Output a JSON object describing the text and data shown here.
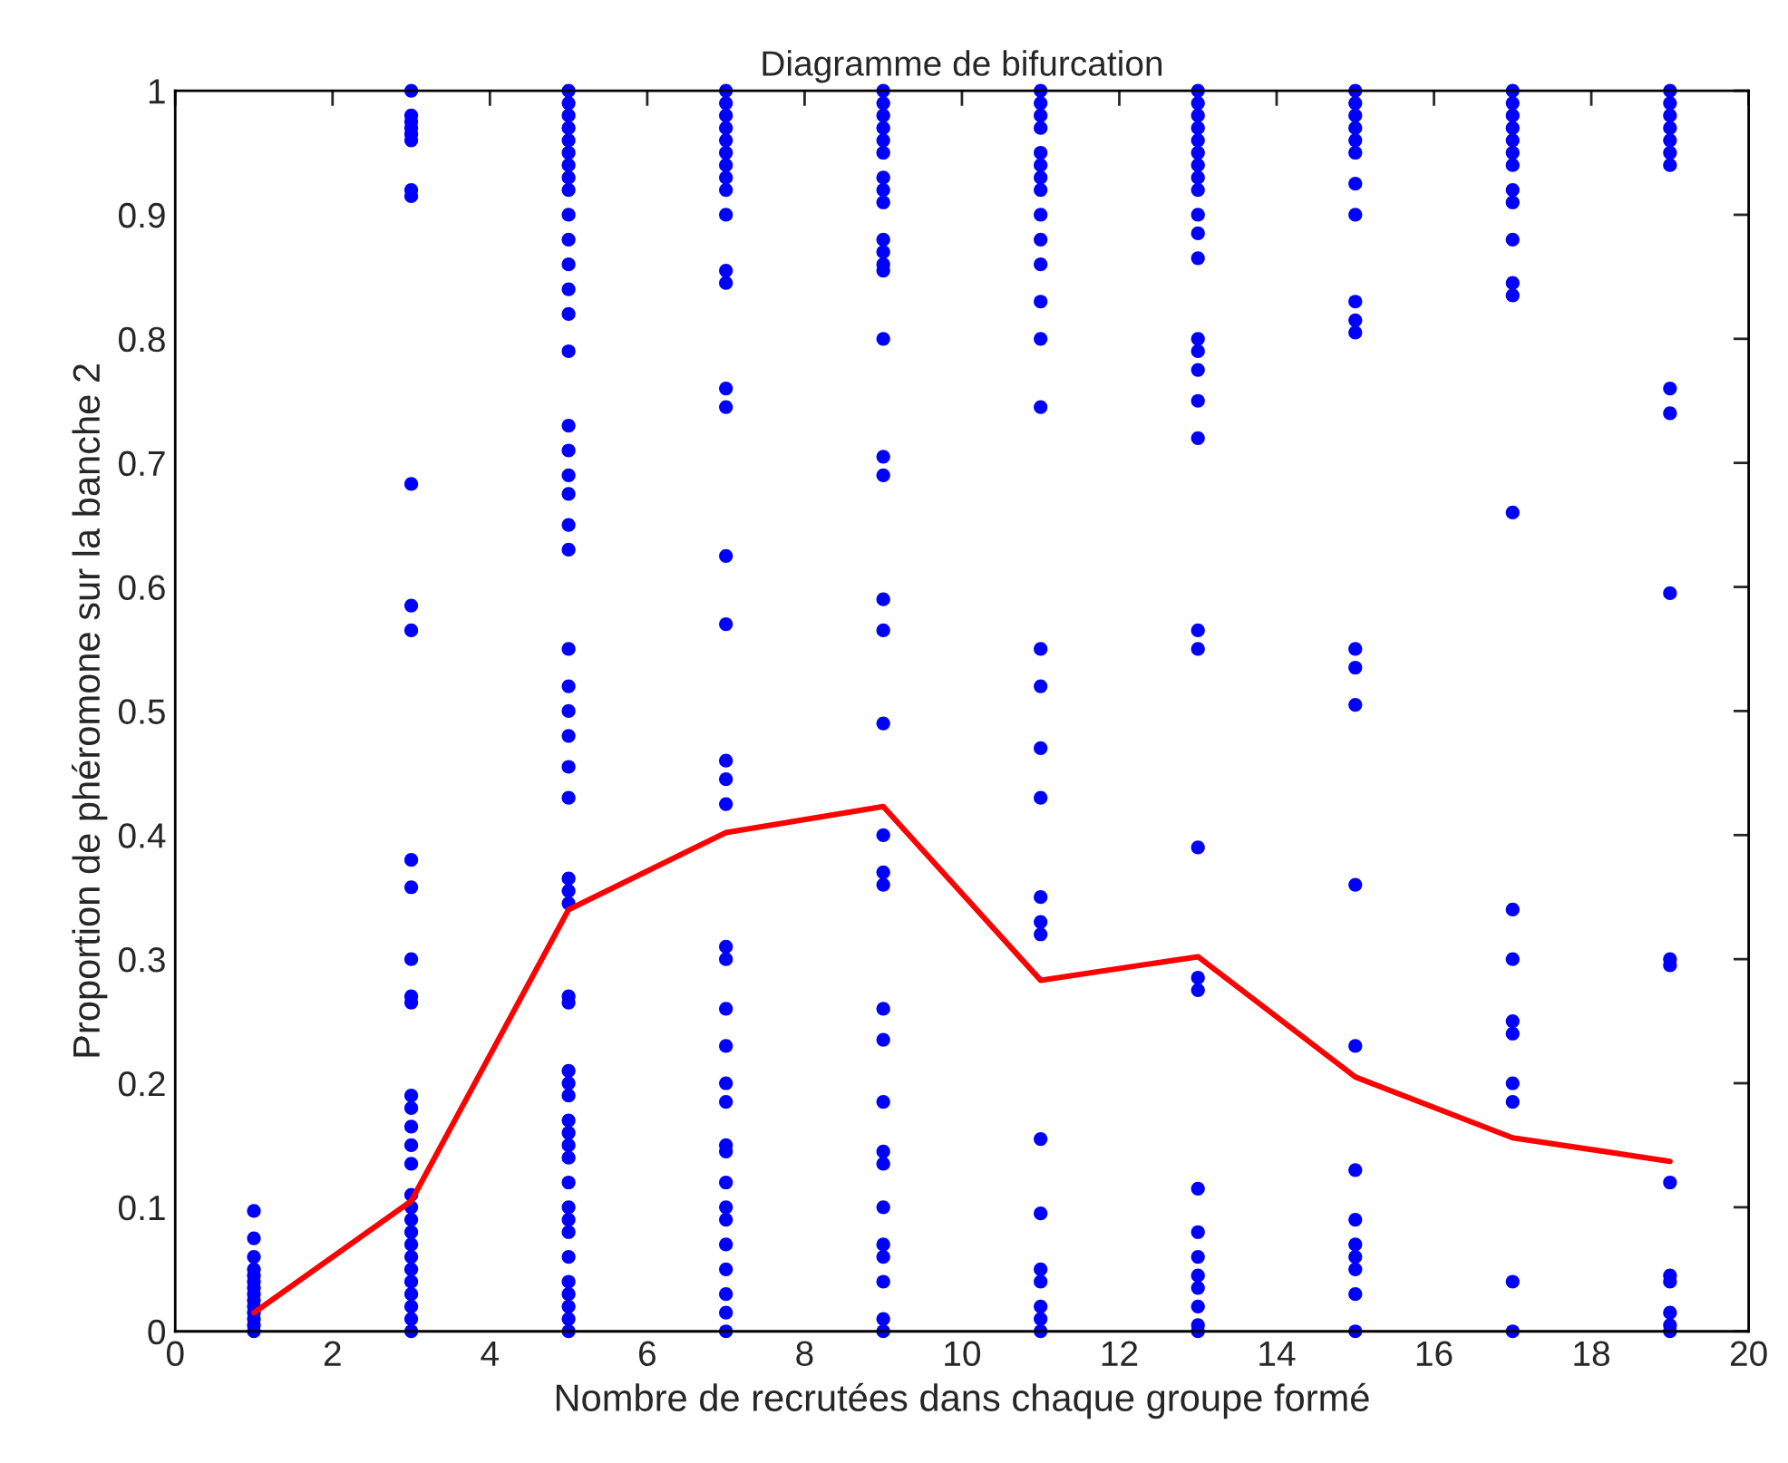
{
  "chart_data": {
    "type": "scatter",
    "title": "Diagramme de bifurcation",
    "xlabel": "Nombre de recrutées dans chaque groupe formé",
    "ylabel": "Proportion de phéromone sur la banche 2",
    "xlim": [
      0,
      20
    ],
    "xticks": [
      0,
      2,
      4,
      6,
      8,
      10,
      12,
      14,
      16,
      18,
      20
    ],
    "ylim": [
      0,
      1
    ],
    "yticks": [
      0,
      0.1,
      0.2,
      0.3,
      0.4,
      0.5,
      0.6,
      0.7,
      0.8,
      0.9,
      1
    ],
    "grid": false,
    "marker": "circle",
    "series": [
      {
        "type": "scatter",
        "color": "#0000ff",
        "x": [
          1,
          1,
          1,
          1,
          1,
          1,
          1,
          1,
          1,
          1,
          1,
          1,
          1,
          1
        ],
        "values": [
          0,
          0.005,
          0.01,
          0.015,
          0.02,
          0.025,
          0.03,
          0.035,
          0.04,
          0.045,
          0.05,
          0.06,
          0.075,
          0.097
        ]
      },
      {
        "type": "scatter",
        "color": "#0000ff",
        "x": [
          3,
          3,
          3,
          3,
          3,
          3,
          3,
          3,
          3,
          3,
          3,
          3,
          3,
          3,
          3,
          3,
          3,
          3,
          3,
          3,
          3,
          3,
          3,
          3,
          3,
          3,
          3,
          3,
          3,
          3,
          3,
          3,
          3
        ],
        "values": [
          1,
          0.98,
          0.975,
          0.97,
          0.965,
          0.96,
          0.92,
          0.915,
          0.683,
          0.585,
          0.565,
          0.38,
          0.358,
          0.3,
          0.27,
          0.265,
          0.19,
          0.18,
          0.165,
          0.15,
          0.135,
          0.11,
          0.1,
          0.09,
          0.08,
          0.07,
          0.06,
          0.05,
          0.04,
          0.03,
          0.02,
          0.01,
          0
        ]
      },
      {
        "type": "scatter",
        "color": "#0000ff",
        "x": [
          5,
          5,
          5,
          5,
          5,
          5,
          5,
          5,
          5,
          5,
          5,
          5,
          5,
          5,
          5,
          5,
          5,
          5,
          5,
          5,
          5,
          5,
          5,
          5,
          5,
          5,
          5,
          5,
          5,
          5,
          5,
          5,
          5,
          5,
          5,
          5,
          5,
          5,
          5,
          5,
          5,
          5,
          5,
          5,
          5,
          5,
          5,
          5,
          5
        ],
        "values": [
          1,
          0.99,
          0.98,
          0.97,
          0.96,
          0.95,
          0.94,
          0.93,
          0.92,
          0.9,
          0.88,
          0.86,
          0.84,
          0.82,
          0.79,
          0.73,
          0.71,
          0.69,
          0.675,
          0.65,
          0.63,
          0.55,
          0.52,
          0.5,
          0.48,
          0.455,
          0.43,
          0.365,
          0.355,
          0.345,
          0.27,
          0.265,
          0.21,
          0.2,
          0.19,
          0.17,
          0.16,
          0.15,
          0.14,
          0.12,
          0.1,
          0.09,
          0.08,
          0.06,
          0.04,
          0.03,
          0.02,
          0.01,
          0
        ]
      },
      {
        "type": "scatter",
        "color": "#0000ff",
        "x": [
          7,
          7,
          7,
          7,
          7,
          7,
          7,
          7,
          7,
          7,
          7,
          7,
          7,
          7,
          7,
          7,
          7,
          7,
          7,
          7,
          7,
          7,
          7,
          7,
          7,
          7,
          7,
          7,
          7,
          7,
          7,
          7,
          7,
          7,
          7
        ],
        "values": [
          1,
          0.99,
          0.98,
          0.97,
          0.96,
          0.95,
          0.94,
          0.93,
          0.92,
          0.9,
          0.855,
          0.845,
          0.76,
          0.745,
          0.625,
          0.57,
          0.46,
          0.445,
          0.425,
          0.31,
          0.3,
          0.26,
          0.23,
          0.2,
          0.185,
          0.15,
          0.145,
          0.12,
          0.1,
          0.09,
          0.07,
          0.05,
          0.03,
          0.015,
          0
        ]
      },
      {
        "type": "scatter",
        "color": "#0000ff",
        "x": [
          9,
          9,
          9,
          9,
          9,
          9,
          9,
          9,
          9,
          9,
          9,
          9,
          9,
          9,
          9,
          9,
          9,
          9,
          9,
          9,
          9,
          9,
          9,
          9,
          9,
          9,
          9,
          9,
          9,
          9,
          9,
          9,
          9
        ],
        "values": [
          1,
          0.99,
          0.98,
          0.97,
          0.96,
          0.95,
          0.93,
          0.92,
          0.91,
          0.88,
          0.87,
          0.86,
          0.855,
          0.8,
          0.705,
          0.69,
          0.59,
          0.565,
          0.49,
          0.4,
          0.37,
          0.36,
          0.26,
          0.235,
          0.185,
          0.145,
          0.135,
          0.1,
          0.07,
          0.06,
          0.04,
          0.01,
          0
        ]
      },
      {
        "type": "scatter",
        "color": "#0000ff",
        "x": [
          11,
          11,
          11,
          11,
          11,
          11,
          11,
          11,
          11,
          11,
          11,
          11,
          11,
          11,
          11,
          11,
          11,
          11,
          11,
          11,
          11,
          11,
          11,
          11,
          11,
          11,
          11,
          11
        ],
        "values": [
          1,
          0.99,
          0.98,
          0.97,
          0.95,
          0.94,
          0.93,
          0.92,
          0.9,
          0.88,
          0.86,
          0.83,
          0.8,
          0.745,
          0.55,
          0.52,
          0.47,
          0.43,
          0.35,
          0.33,
          0.32,
          0.155,
          0.095,
          0.05,
          0.04,
          0.02,
          0.01,
          0
        ]
      },
      {
        "type": "scatter",
        "color": "#0000ff",
        "x": [
          13,
          13,
          13,
          13,
          13,
          13,
          13,
          13,
          13,
          13,
          13,
          13,
          13,
          13,
          13,
          13,
          13,
          13,
          13,
          13,
          13,
          13,
          13,
          13,
          13,
          13,
          13,
          13,
          13,
          13
        ],
        "values": [
          1,
          0.99,
          0.98,
          0.97,
          0.96,
          0.95,
          0.94,
          0.93,
          0.92,
          0.9,
          0.885,
          0.865,
          0.8,
          0.79,
          0.775,
          0.75,
          0.72,
          0.565,
          0.55,
          0.39,
          0.285,
          0.275,
          0.115,
          0.08,
          0.06,
          0.045,
          0.035,
          0.02,
          0.005,
          0
        ]
      },
      {
        "type": "scatter",
        "color": "#0000ff",
        "x": [
          15,
          15,
          15,
          15,
          15,
          15,
          15,
          15,
          15,
          15,
          15,
          15,
          15,
          15,
          15,
          15,
          15,
          15,
          15,
          15,
          15,
          15,
          15
        ],
        "values": [
          1,
          0.99,
          0.98,
          0.97,
          0.96,
          0.95,
          0.925,
          0.9,
          0.83,
          0.815,
          0.805,
          0.55,
          0.535,
          0.505,
          0.36,
          0.23,
          0.13,
          0.09,
          0.07,
          0.06,
          0.05,
          0.03,
          0
        ]
      },
      {
        "type": "scatter",
        "color": "#0000ff",
        "x": [
          17,
          17,
          17,
          17,
          17,
          17,
          17,
          17,
          17,
          17,
          17,
          17,
          17,
          17,
          17,
          17,
          17,
          17,
          17,
          17,
          17
        ],
        "values": [
          1,
          0.99,
          0.98,
          0.97,
          0.96,
          0.95,
          0.94,
          0.92,
          0.91,
          0.88,
          0.845,
          0.835,
          0.66,
          0.34,
          0.3,
          0.25,
          0.24,
          0.2,
          0.185,
          0.04,
          0
        ]
      },
      {
        "type": "scatter",
        "color": "#0000ff",
        "x": [
          19,
          19,
          19,
          19,
          19,
          19,
          19,
          19,
          19,
          19,
          19,
          19,
          19,
          19,
          19,
          19,
          19,
          19
        ],
        "values": [
          1,
          0.99,
          0.98,
          0.97,
          0.96,
          0.95,
          0.94,
          0.76,
          0.74,
          0.595,
          0.3,
          0.295,
          0.12,
          0.045,
          0.04,
          0.015,
          0.005,
          0
        ]
      },
      {
        "type": "line",
        "color": "#ff0000",
        "marker": "none",
        "line_style": "solid",
        "x": [
          1,
          3,
          5,
          7,
          9,
          11,
          13,
          15,
          17,
          19
        ],
        "values": [
          0.015,
          0.105,
          0.34,
          0.402,
          0.423,
          0.283,
          0.302,
          0.205,
          0.156,
          0.137
        ]
      }
    ]
  }
}
